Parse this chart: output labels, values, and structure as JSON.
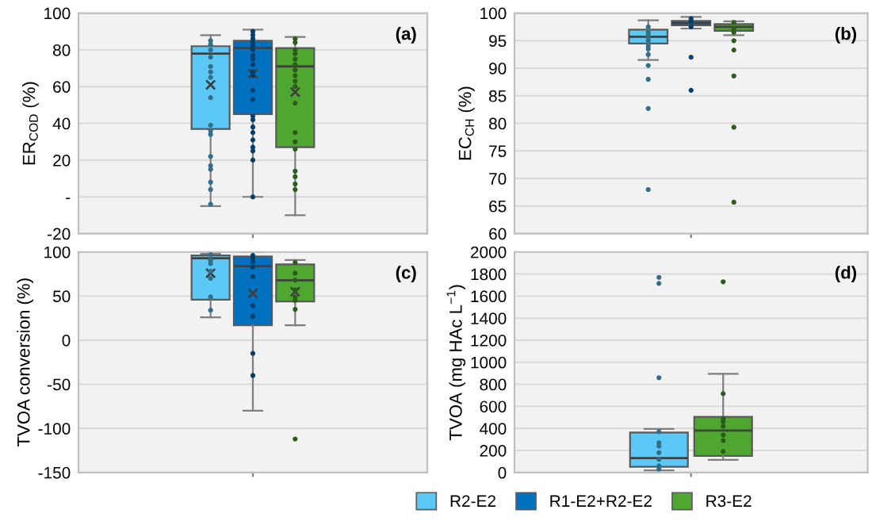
{
  "chart_data": [
    {
      "type": "box",
      "ylabel": "ER$_{COD}$ (%)",
      "annotations": [
        "(a)"
      ],
      "categories": [
        null
      ],
      "ylim": [
        -20,
        100
      ],
      "yticks": [
        -20,
        {
          "value": 0,
          "label": "-"
        },
        20,
        40,
        60,
        80,
        100
      ],
      "grid": "y",
      "legend": "bottom",
      "series": [
        {
          "name": "R2-E2",
          "color": "#5bc8f5",
          "boxes": [
            {
              "low": -5,
              "q1": 37,
              "median": 78,
              "q3": 82,
              "high": 88,
              "mean": 61,
              "outliers": [
                85,
                83,
                80,
                76,
                71,
                68,
                65,
                54,
                39,
                36,
                34,
                22,
                17,
                15,
                8,
                4,
                -4
              ]
            }
          ]
        },
        {
          "name": "R1-E2+R2-E2",
          "color": "#0070c0",
          "boxes": [
            {
              "low": 0,
              "q1": 45,
              "median": 81,
              "q3": 85,
              "high": 91,
              "mean": 67,
              "outliers": [
                90,
                88,
                86,
                84,
                82,
                80,
                77,
                75,
                72,
                68,
                66,
                58,
                53,
                44,
                42,
                38,
                35,
                31,
                27,
                25,
                20,
                0
              ]
            }
          ]
        },
        {
          "name": "R3-E2",
          "color": "#4ea72e",
          "boxes": [
            {
              "low": -10,
              "q1": 27,
              "median": 71,
              "q3": 81,
              "high": 87,
              "mean": 57,
              "outliers": [
                86,
                84,
                80,
                78,
                75,
                72,
                69,
                66,
                63,
                60,
                51,
                35,
                30,
                26,
                14,
                11,
                7,
                4
              ]
            }
          ]
        }
      ]
    },
    {
      "type": "box",
      "ylabel": "EC$_{CH}$ (%)",
      "annotations": [
        "(b)"
      ],
      "categories": [
        null
      ],
      "ylim": [
        60,
        100
      ],
      "yticks": [
        60,
        65,
        70,
        75,
        80,
        85,
        90,
        95,
        100
      ],
      "grid": "y",
      "series": [
        {
          "color": "#5bc8f5",
          "boxes": [
            {
              "low": 91.5,
              "q1": 94.5,
              "median": 95.7,
              "q3": 97,
              "high": 98.7,
              "outliers": [
                97.5,
                96.5,
                96,
                95.5,
                95,
                94,
                93.5,
                92.5,
                90.5,
                88,
                82.7,
                68
              ]
            }
          ]
        },
        {
          "color": "#0070c0",
          "boxes": [
            {
              "low": 97.2,
              "q1": 97.8,
              "median": 98.2,
              "q3": 98.6,
              "high": 99.3,
              "outliers": [
                99,
                98.5,
                97.5,
                92,
                86
              ]
            }
          ]
        },
        {
          "color": "#4ea72e",
          "boxes": [
            {
              "low": 96,
              "q1": 96.8,
              "median": 97.5,
              "q3": 98,
              "high": 98.5,
              "outliers": [
                98.3,
                97.2,
                96.5,
                95,
                93.3,
                88.6,
                79.3,
                65.7
              ]
            }
          ]
        }
      ]
    },
    {
      "type": "box",
      "ylabel": "TVOA conversion (%)",
      "annotations": [
        "(c)"
      ],
      "categories": [
        null
      ],
      "ylim": [
        -150,
        100
      ],
      "yticks": [
        -150,
        -100,
        -50,
        0,
        50,
        100
      ],
      "grid": "y",
      "series": [
        {
          "color": "#5bc8f5",
          "boxes": [
            {
              "low": 26,
              "q1": 46,
              "median": 93,
              "q3": 96,
              "high": 98,
              "mean": 76,
              "outliers": [
                97,
                91,
                87,
                78,
                70,
                49,
                34
              ]
            }
          ]
        },
        {
          "color": "#0070c0",
          "boxes": [
            {
              "low": -80,
              "q1": 17,
              "median": 84,
              "q3": 95,
              "high": 100,
              "mean": 53,
              "outliers": [
                96,
                93,
                89,
                83,
                72,
                39,
                27,
                -15,
                -40
              ]
            }
          ]
        },
        {
          "color": "#4ea72e",
          "boxes": [
            {
              "low": 17,
              "q1": 44,
              "median": 68,
              "q3": 86,
              "high": 91,
              "mean": 55,
              "outliers": [
                88,
                76,
                68,
                57,
                49,
                45,
                35,
                -112
              ]
            }
          ]
        }
      ]
    },
    {
      "type": "box",
      "ylabel": "TVOA (mg HAc L$^{−1}$)",
      "annotations": [
        "(d)"
      ],
      "categories": [
        null
      ],
      "ylim": [
        0,
        2000
      ],
      "yticks": [
        0,
        200,
        400,
        600,
        800,
        1000,
        1200,
        1400,
        1600,
        1800,
        2000
      ],
      "grid": "y",
      "series": [
        {
          "color": "#5bc8f5",
          "boxes": [
            {
              "low": 20,
              "q1": 52,
              "median": 130,
              "q3": 362,
              "high": 395,
              "outliers": [
                1770,
                1715,
                860,
                370,
                270,
                240,
                180,
                120,
                60,
                30
              ]
            }
          ]
        },
        {
          "color": "#4ea72e",
          "boxes": [
            {
              "low": 115,
              "q1": 150,
              "median": 380,
              "q3": 505,
              "high": 895,
              "outliers": [
                1730,
                715,
                490,
                460,
                420,
                340,
                290,
                190
              ]
            }
          ]
        }
      ]
    }
  ]
}
